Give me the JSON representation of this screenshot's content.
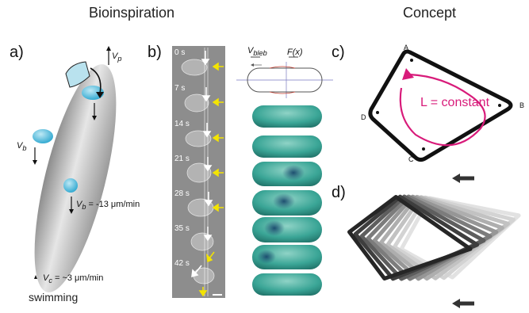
{
  "headers": {
    "left": "Bioinspiration",
    "right": "Concept"
  },
  "panel_labels": {
    "a": "a)",
    "b": "b)",
    "c": "c)",
    "d": "d)"
  },
  "panel_a": {
    "vp_label": "V",
    "vp_sub": "p",
    "vb_label": "V",
    "vb_sub": "b",
    "vb2_label": "V",
    "vb2_sub": "b",
    "vb2_value": "= -13 μm/min",
    "vc_label": "V",
    "vc_sub": "c",
    "vc_value": "= ~3 μm/min",
    "caption": "swimming"
  },
  "panel_b": {
    "times": [
      "0 s",
      "7 s",
      "14 s",
      "21 s",
      "28 s",
      "35 s",
      "42 s"
    ],
    "vbleb_label": "V",
    "vbleb_sub": "bleb",
    "fx_label": "F(x)"
  },
  "panel_c": {
    "vertices": {
      "A": "A",
      "B": "B",
      "C": "C",
      "D": "D"
    },
    "center_text": "L = constant",
    "accent_color": "#d81b7a"
  }
}
